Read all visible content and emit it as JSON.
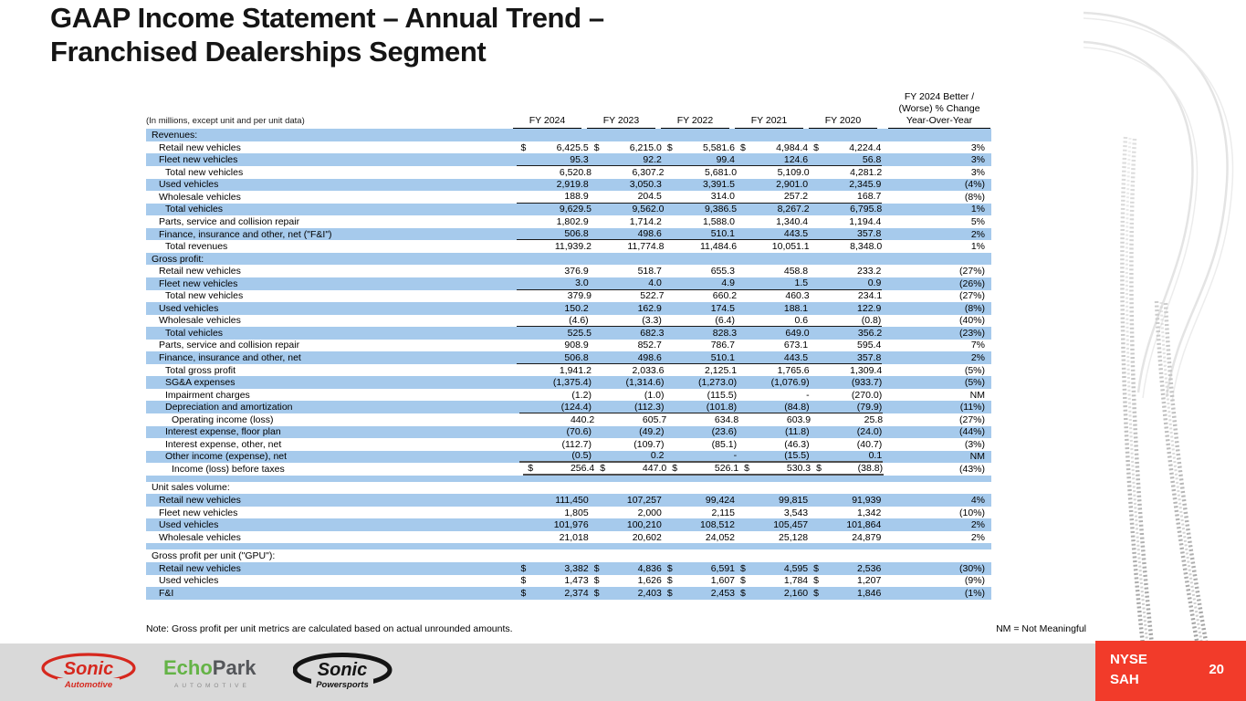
{
  "slide": {
    "title_line1": "GAAP Income Statement – Annual Trend –",
    "title_line2": "Franchised Dealerships Segment",
    "note": "Note: Gross profit per unit metrics are calculated based on actual unrounded amounts.",
    "nm_note": "NM = Not Meaningful",
    "page_number": "20",
    "ticker_line1": "NYSE",
    "ticker_line2": "SAH",
    "colors": {
      "row_band_blue": "#A6CAEC",
      "badge_red": "#F23B2A",
      "footer_gray": "#D9D9D9",
      "sonic_red": "#D6281E",
      "echopark_green": "#64B346",
      "echopark_gray": "#54565A"
    }
  },
  "footer": {
    "logos": [
      {
        "name": "sonic-automotive-logo",
        "line1": "Sonic",
        "line2": "Automotive"
      },
      {
        "name": "echopark-logo",
        "part1": "Echo",
        "part2": "Park",
        "line2": "AUTOMOTIVE"
      },
      {
        "name": "sonic-powersports-logo",
        "line1": "Sonic",
        "line2": "Powersports"
      }
    ]
  },
  "table": {
    "units_label": "(In millions, except unit and per unit data)",
    "currency_symbol": "$",
    "columns": [
      "FY 2024",
      "FY 2023",
      "FY 2022",
      "FY 2021",
      "FY 2020"
    ],
    "change_header_lines": [
      "FY 2024 Better /",
      "(Worse) % Change",
      "Year-Over-Year"
    ],
    "rows": [
      {
        "type": "section",
        "label": "Revenues:",
        "shade": "blue",
        "indent": 0
      },
      {
        "label": "Retail new vehicles",
        "shade": "white",
        "indent": 1,
        "dollar": true,
        "values": [
          "6,425.5",
          "6,215.0",
          "5,581.6",
          "4,984.4",
          "4,224.4"
        ],
        "change": "3%"
      },
      {
        "label": "Fleet new vehicles",
        "shade": "blue",
        "indent": 1,
        "rule": true,
        "values": [
          "95.3",
          "92.2",
          "99.4",
          "124.6",
          "56.8"
        ],
        "change": "3%"
      },
      {
        "label": "Total new vehicles",
        "shade": "white",
        "indent": 2,
        "values": [
          "6,520.8",
          "6,307.2",
          "5,681.0",
          "5,109.0",
          "4,281.2"
        ],
        "change": "3%"
      },
      {
        "label": "Used vehicles",
        "shade": "blue",
        "indent": 1,
        "values": [
          "2,919.8",
          "3,050.3",
          "3,391.5",
          "2,901.0",
          "2,345.9"
        ],
        "change": "(4%)"
      },
      {
        "label": "Wholesale vehicles",
        "shade": "white",
        "indent": 1,
        "rule": true,
        "values": [
          "188.9",
          "204.5",
          "314.0",
          "257.2",
          "168.7"
        ],
        "change": "(8%)"
      },
      {
        "label": "Total vehicles",
        "shade": "blue",
        "indent": 2,
        "values": [
          "9,629.5",
          "9,562.0",
          "9,386.5",
          "8,267.2",
          "6,795.8"
        ],
        "change": "1%"
      },
      {
        "label": "Parts, service and collision repair",
        "shade": "white",
        "indent": 1,
        "values": [
          "1,802.9",
          "1,714.2",
          "1,588.0",
          "1,340.4",
          "1,194.4"
        ],
        "change": "5%"
      },
      {
        "label": "Finance, insurance and other, net (\"F&I\")",
        "shade": "blue",
        "indent": 1,
        "rule": true,
        "values": [
          "506.8",
          "498.6",
          "510.1",
          "443.5",
          "357.8"
        ],
        "change": "2%"
      },
      {
        "label": "Total revenues",
        "shade": "white",
        "indent": 2,
        "values": [
          "11,939.2",
          "11,774.8",
          "11,484.6",
          "10,051.1",
          "8,348.0"
        ],
        "change": "1%"
      },
      {
        "type": "section",
        "label": "Gross profit:",
        "shade": "blue",
        "indent": 0
      },
      {
        "label": "Retail new vehicles",
        "shade": "white",
        "indent": 1,
        "values": [
          "376.9",
          "518.7",
          "655.3",
          "458.8",
          "233.2"
        ],
        "change": "(27%)"
      },
      {
        "label": "Fleet new vehicles",
        "shade": "blue",
        "indent": 1,
        "rule": true,
        "values": [
          "3.0",
          "4.0",
          "4.9",
          "1.5",
          "0.9"
        ],
        "change": "(26%)"
      },
      {
        "label": "Total new vehicles",
        "shade": "white",
        "indent": 2,
        "values": [
          "379.9",
          "522.7",
          "660.2",
          "460.3",
          "234.1"
        ],
        "change": "(27%)"
      },
      {
        "label": "Used vehicles",
        "shade": "blue",
        "indent": 1,
        "values": [
          "150.2",
          "162.9",
          "174.5",
          "188.1",
          "122.9"
        ],
        "change": "(8%)"
      },
      {
        "label": "Wholesale vehicles",
        "shade": "white",
        "indent": 1,
        "rule": true,
        "values": [
          "(4.6)",
          "(3.3)",
          "(6.4)",
          "0.6",
          "(0.8)"
        ],
        "change": "(40%)"
      },
      {
        "label": "Total vehicles",
        "shade": "blue",
        "indent": 2,
        "values": [
          "525.5",
          "682.3",
          "828.3",
          "649.0",
          "356.2"
        ],
        "change": "(23%)"
      },
      {
        "label": "Parts, service and collision repair",
        "shade": "white",
        "indent": 1,
        "values": [
          "908.9",
          "852.7",
          "786.7",
          "673.1",
          "595.4"
        ],
        "change": "7%"
      },
      {
        "label": "Finance, insurance and other, net",
        "shade": "blue",
        "indent": 1,
        "rule": true,
        "values": [
          "506.8",
          "498.6",
          "510.1",
          "443.5",
          "357.8"
        ],
        "change": "2%"
      },
      {
        "label": "Total gross profit",
        "shade": "white",
        "indent": 2,
        "values": [
          "1,941.2",
          "2,033.6",
          "2,125.1",
          "1,765.6",
          "1,309.4"
        ],
        "change": "(5%)"
      },
      {
        "label": "SG&A expenses",
        "shade": "blue",
        "indent": 2,
        "values": [
          "(1,375.4)",
          "(1,314.6)",
          "(1,273.0)",
          "(1,076.9)",
          "(933.7)"
        ],
        "change": "(5%)"
      },
      {
        "label": "Impairment charges",
        "shade": "white",
        "indent": 2,
        "values": [
          "(1.2)",
          "(1.0)",
          "(115.5)",
          "-",
          "(270.0)"
        ],
        "change": "NM"
      },
      {
        "label": "Depreciation and amortization",
        "shade": "blue",
        "indent": 2,
        "rule": true,
        "values": [
          "(124.4)",
          "(112.3)",
          "(101.8)",
          "(84.8)",
          "(79.9)"
        ],
        "change": "(11%)"
      },
      {
        "label": "Operating income (loss)",
        "shade": "white",
        "indent": 3,
        "values": [
          "440.2",
          "605.7",
          "634.8",
          "603.9",
          "25.8"
        ],
        "change": "(27%)"
      },
      {
        "label": "Interest expense, floor plan",
        "shade": "blue",
        "indent": 2,
        "values": [
          "(70.6)",
          "(49.2)",
          "(23.6)",
          "(11.8)",
          "(24.0)"
        ],
        "change": "(44%)"
      },
      {
        "label": "Interest expense, other, net",
        "shade": "white",
        "indent": 2,
        "values": [
          "(112.7)",
          "(109.7)",
          "(85.1)",
          "(46.3)",
          "(40.7)"
        ],
        "change": "(3%)"
      },
      {
        "label": "Other income (expense), net",
        "shade": "blue",
        "indent": 2,
        "dark_rule": true,
        "values": [
          "(0.5)",
          "0.2",
          "-",
          "(15.5)",
          "0.1"
        ],
        "change": "NM"
      },
      {
        "label": "Income (loss) before taxes",
        "shade": "white",
        "indent": 3,
        "dollar": true,
        "dark_rule": true,
        "values": [
          "256.4",
          "447.0",
          "526.1",
          "530.3",
          "(38.8)"
        ],
        "change": "(43%)"
      },
      {
        "type": "spacer",
        "shade": "blue"
      },
      {
        "type": "section",
        "label": "Unit sales volume:",
        "shade": "white",
        "indent": 0
      },
      {
        "label": "Retail new vehicles",
        "shade": "blue",
        "indent": 1,
        "values": [
          "111,450",
          "107,257",
          "99,424",
          "99,815",
          "91,939"
        ],
        "change": "4%"
      },
      {
        "label": "Fleet new vehicles",
        "shade": "white",
        "indent": 1,
        "values": [
          "1,805",
          "2,000",
          "2,115",
          "3,543",
          "1,342"
        ],
        "change": "(10%)"
      },
      {
        "label": "Used vehicles",
        "shade": "blue",
        "indent": 1,
        "values": [
          "101,976",
          "100,210",
          "108,512",
          "105,457",
          "101,864"
        ],
        "change": "2%"
      },
      {
        "label": "Wholesale vehicles",
        "shade": "white",
        "indent": 1,
        "values": [
          "21,018",
          "20,602",
          "24,052",
          "25,128",
          "24,879"
        ],
        "change": "2%"
      },
      {
        "type": "spacer",
        "shade": "blue"
      },
      {
        "type": "section",
        "label": "Gross profit per unit (\"GPU\"):",
        "shade": "white",
        "indent": 0
      },
      {
        "label": "Retail new vehicles",
        "shade": "blue",
        "indent": 1,
        "dollar": true,
        "values": [
          "3,382",
          "4,836",
          "6,591",
          "4,595",
          "2,536"
        ],
        "change": "(30%)"
      },
      {
        "label": "Used vehicles",
        "shade": "white",
        "indent": 1,
        "dollar": true,
        "values": [
          "1,473",
          "1,626",
          "1,607",
          "1,784",
          "1,207"
        ],
        "change": "(9%)"
      },
      {
        "label": "F&I",
        "shade": "blue",
        "indent": 1,
        "dollar": true,
        "values": [
          "2,374",
          "2,403",
          "2,453",
          "2,160",
          "1,846"
        ],
        "change": "(1%)"
      }
    ]
  }
}
